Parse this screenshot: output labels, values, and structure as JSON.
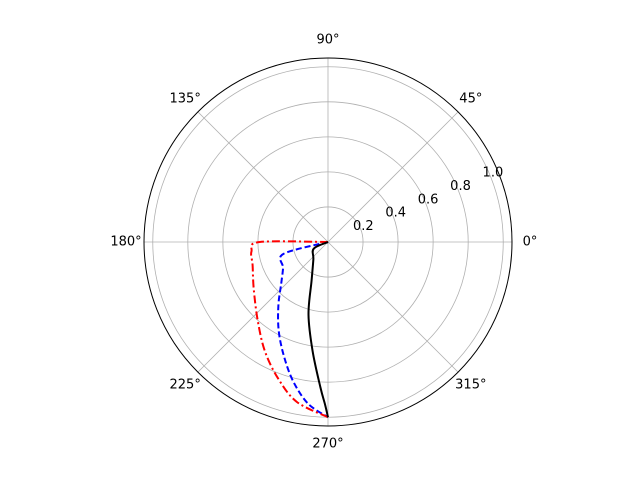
{
  "chart_data": {
    "type": "line",
    "projection": "polar",
    "title": "",
    "angle_unit": "degrees",
    "theta_ticks": [
      "0°",
      "45°",
      "90°",
      "135°",
      "180°",
      "225°",
      "270°",
      "315°"
    ],
    "theta_tick_values": [
      0,
      45,
      90,
      135,
      180,
      225,
      270,
      315
    ],
    "r_ticks": [
      "0.2",
      "0.4",
      "0.6",
      "0.8",
      "1.0"
    ],
    "r_tick_values": [
      0.2,
      0.4,
      0.6,
      0.8,
      1.0
    ],
    "rlim": [
      0,
      1.05
    ],
    "grid": true,
    "legend": "none",
    "series": [
      {
        "color": "#0000ff",
        "linestyle": "dashed",
        "theta_deg": [
          180,
          195,
          210,
          222,
          232,
          241,
          249,
          256,
          263,
          270
        ],
        "r": [
          0.0,
          0.264,
          0.296,
          0.36,
          0.46,
          0.58,
          0.7,
          0.82,
          0.93,
          1.0
        ]
      },
      {
        "color": "#ff0000",
        "linestyle": "dashdot",
        "theta_deg": [
          180,
          180,
          187,
          197,
          212,
          228,
          240,
          250,
          259,
          270
        ],
        "r": [
          0.0,
          0.39,
          0.44,
          0.45,
          0.5,
          0.6,
          0.72,
          0.83,
          0.93,
          1.0
        ]
      },
      {
        "color": "#000000",
        "linestyle": "solid",
        "theta_deg": [
          180,
          205,
          230,
          247,
          255,
          262,
          267,
          269,
          270
        ],
        "r": [
          0.0,
          0.09,
          0.13,
          0.24,
          0.43,
          0.63,
          0.83,
          0.93,
          1.0
        ]
      }
    ]
  }
}
